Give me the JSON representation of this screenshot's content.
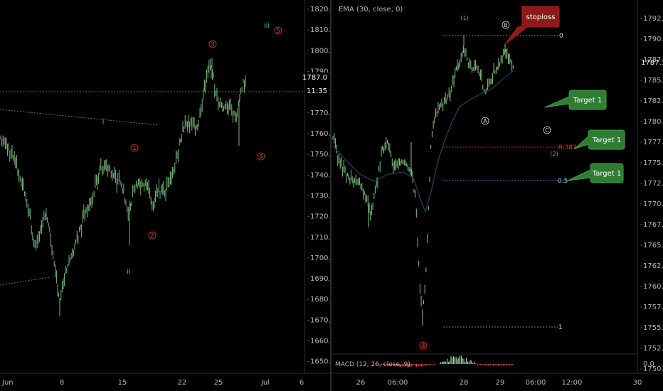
{
  "colors": {
    "background": "#000000",
    "candle": "#81c784",
    "ema": "#26384f",
    "wave_red": "#e53935",
    "wave_green": "#66bb6a",
    "target_box": "#2e7d32",
    "stoploss_box": "#8b1a1a",
    "fib_0382": "#e53935",
    "fib_05": "#42a5f5",
    "fib_0": "#9e9e9e",
    "fib_1": "#9e9e9e"
  },
  "left_chart": {
    "price_axis_labels": [
      "1820.0",
      "1810.0",
      "1800.0",
      "1790.0",
      "1780.0",
      "1770.0",
      "1760.0",
      "1750.0",
      "1740.0",
      "1730.0",
      "1720.0",
      "1710.0",
      "1700.0",
      "1690.0",
      "1680.0",
      "1670.0",
      "1660.0",
      "1650.0"
    ],
    "current_price": "1787.0",
    "countdown": "11:35",
    "time_axis_labels": [
      "Jun",
      "8",
      "15",
      "22",
      "25",
      "Jul",
      "6"
    ],
    "wave_labels_red": [
      "1",
      "2",
      "3",
      "4",
      "5"
    ],
    "wave_labels_green": [
      "i",
      "ii",
      "iii"
    ]
  },
  "right_chart": {
    "indicator_legend": "EMA (30, close, 0)",
    "macd_legend": "MACD (12, 26, close, 9)",
    "price_axis_labels": [
      "1792.5",
      "1790.0",
      "1787.5",
      "1785.0",
      "1782.5",
      "1780.0",
      "1777.5",
      "1775.0",
      "1772.5",
      "1770.0",
      "1767.5",
      "1765.0",
      "1762.5",
      "1760.0",
      "1757.5",
      "1755.0",
      "1752.5",
      "1750.0"
    ],
    "current_price": "1787.1",
    "macd_axis_label": "0.0",
    "time_axis_labels": [
      "26",
      "06:00",
      "28",
      "29",
      "06:00",
      "12:00",
      "30"
    ],
    "fib_labels": [
      "0",
      "0.382",
      "0.5",
      "1"
    ],
    "wave_labels_green": [
      "(1)",
      "(2)"
    ],
    "wave_labels_white": [
      "A",
      "B",
      "C"
    ],
    "wave_labels_red": [
      "4"
    ],
    "callouts": {
      "stoploss": "stoploss",
      "target1": "Target 1",
      "target2": "Target 1",
      "target3": "Target 1"
    }
  }
}
